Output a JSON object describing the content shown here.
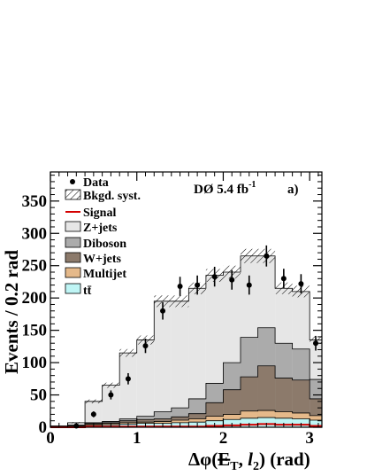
{
  "chart_data": {
    "type": "histogram",
    "experiment_label": "DØ 5.4 fb",
    "experiment_label_sup": "-1",
    "panel_label": "a)",
    "ylabel": "Events / 0.2 rad",
    "xlabel_parts": {
      "pre": "Δφ(",
      "et": "E",
      "et_sub": "T",
      "mid": ", ",
      "l": "l",
      "l_sub": "2",
      "post": ") (rad)"
    },
    "xlim": [
      0,
      3.1416
    ],
    "ylim": [
      0,
      395
    ],
    "x_ticks": [
      0,
      1,
      2,
      3
    ],
    "y_ticks": [
      0,
      50,
      100,
      150,
      200,
      250,
      300,
      350
    ],
    "bin_edges": [
      0,
      0.2,
      0.4,
      0.6,
      0.8,
      1.0,
      1.2,
      1.4,
      1.6,
      1.8,
      2.0,
      2.2,
      2.4,
      2.6,
      2.8,
      3.0,
      3.1416
    ],
    "legend": [
      {
        "key": "data",
        "label": "Data"
      },
      {
        "key": "syst",
        "label": "Bkgd. syst."
      },
      {
        "key": "signal",
        "label": "Signal"
      },
      {
        "key": "zjets",
        "label": "Z+jets"
      },
      {
        "key": "diboson",
        "label": "Diboson"
      },
      {
        "key": "wjets",
        "label": "W+jets"
      },
      {
        "key": "multijet",
        "label": "Multijet"
      },
      {
        "key": "ttbar",
        "label": "tt̄"
      }
    ],
    "colors": {
      "zjets": "#e6e6e6",
      "diboson": "#ababab",
      "wjets": "#8c7a6b",
      "multijet": "#e5b98a",
      "ttbar": "#bff5f5",
      "signal": "#d40000",
      "outline": "#000000"
    },
    "stack_cumulative": {
      "ttbar": [
        1,
        2,
        3,
        4,
        5,
        6,
        6,
        7,
        8,
        10,
        12,
        14,
        15,
        14,
        13,
        11
      ],
      "multijet": [
        1,
        3,
        5,
        6,
        7,
        8,
        9,
        11,
        13,
        17,
        20,
        25,
        26,
        24,
        22,
        18
      ],
      "wjets": [
        1,
        3,
        6,
        7,
        10,
        12,
        13,
        16,
        21,
        38,
        58,
        78,
        95,
        76,
        73,
        44
      ],
      "diboson": [
        1,
        3,
        7,
        9,
        13,
        17,
        24,
        30,
        44,
        68,
        100,
        139,
        154,
        130,
        121,
        74
      ],
      "zjets": [
        2,
        7,
        40,
        65,
        115,
        135,
        195,
        195,
        215,
        235,
        240,
        265,
        265,
        215,
        210,
        135
      ]
    },
    "syst_halfwidth": [
      0,
      1,
      3,
      4,
      6,
      7,
      9,
      9,
      9,
      10,
      10,
      11,
      11,
      9,
      9,
      6
    ],
    "signal": [
      0,
      0,
      1,
      1,
      1,
      1,
      1,
      1,
      1,
      2,
      3,
      4,
      5,
      4,
      4,
      2
    ],
    "data": {
      "x": [
        0.3,
        0.5,
        0.7,
        0.9,
        1.1,
        1.3,
        1.5,
        1.7,
        1.9,
        2.1,
        2.3,
        2.5,
        2.7,
        2.9,
        3.07
      ],
      "y": [
        2,
        20,
        50,
        75,
        126,
        180,
        218,
        220,
        233,
        228,
        220,
        265,
        230,
        222,
        130
      ],
      "err": [
        1.5,
        4.5,
        7,
        8.7,
        11.2,
        13.4,
        14.8,
        14.8,
        15.3,
        15.1,
        14.8,
        16.3,
        15.2,
        14.9,
        11.4
      ]
    }
  }
}
